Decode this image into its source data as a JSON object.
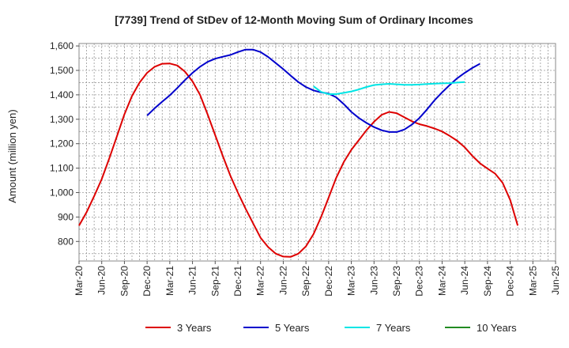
{
  "chart_data": {
    "type": "line",
    "title": "[7739]  Trend of StDev of 12-Month Moving Sum of Ordinary Incomes",
    "ylabel": "Amount (million yen)",
    "xlabel": "",
    "ylim": [
      720,
      1610
    ],
    "yticks": [
      800,
      900,
      1000,
      1100,
      1200,
      1300,
      1400,
      1500,
      1600
    ],
    "ytick_labels": [
      "800",
      "900",
      "1,000",
      "1,100",
      "1,200",
      "1,300",
      "1,400",
      "1,500",
      "1,600"
    ],
    "x_start": "2020-03",
    "x_end": "2025-06",
    "xticks": [
      "2020-03",
      "2020-06",
      "2020-09",
      "2020-12",
      "2021-03",
      "2021-06",
      "2021-09",
      "2021-12",
      "2022-03",
      "2022-06",
      "2022-09",
      "2022-12",
      "2023-03",
      "2023-06",
      "2023-09",
      "2023-12",
      "2024-03",
      "2024-06",
      "2024-09",
      "2024-12",
      "2025-03",
      "2025-06"
    ],
    "xtick_labels": [
      "Mar-20",
      "Jun-20",
      "Sep-20",
      "Dec-20",
      "Mar-21",
      "Jun-21",
      "Sep-21",
      "Dec-21",
      "Mar-22",
      "Jun-22",
      "Sep-22",
      "Dec-22",
      "Mar-23",
      "Jun-23",
      "Sep-23",
      "Dec-23",
      "Mar-24",
      "Jun-24",
      "Sep-24",
      "Dec-24",
      "Mar-25",
      "Jun-25"
    ],
    "grid": true,
    "legend_position": "bottom",
    "series": [
      {
        "name": "3 Years",
        "color": "#dd0000",
        "points": [
          [
            "2020-03",
            865
          ],
          [
            "2020-04",
            920
          ],
          [
            "2020-05",
            985
          ],
          [
            "2020-06",
            1055
          ],
          [
            "2020-07",
            1140
          ],
          [
            "2020-08",
            1230
          ],
          [
            "2020-09",
            1320
          ],
          [
            "2020-10",
            1395
          ],
          [
            "2020-11",
            1450
          ],
          [
            "2020-12",
            1490
          ],
          [
            "2021-01",
            1515
          ],
          [
            "2021-02",
            1527
          ],
          [
            "2021-03",
            1528
          ],
          [
            "2021-04",
            1520
          ],
          [
            "2021-05",
            1495
          ],
          [
            "2021-06",
            1455
          ],
          [
            "2021-07",
            1400
          ],
          [
            "2021-08",
            1320
          ],
          [
            "2021-09",
            1235
          ],
          [
            "2021-10",
            1150
          ],
          [
            "2021-11",
            1070
          ],
          [
            "2021-12",
            1000
          ],
          [
            "2022-01",
            935
          ],
          [
            "2022-02",
            875
          ],
          [
            "2022-03",
            815
          ],
          [
            "2022-04",
            777
          ],
          [
            "2022-05",
            750
          ],
          [
            "2022-06",
            738
          ],
          [
            "2022-07",
            737
          ],
          [
            "2022-08",
            750
          ],
          [
            "2022-09",
            780
          ],
          [
            "2022-10",
            830
          ],
          [
            "2022-11",
            900
          ],
          [
            "2022-12",
            980
          ],
          [
            "2023-01",
            1060
          ],
          [
            "2023-02",
            1125
          ],
          [
            "2023-03",
            1175
          ],
          [
            "2023-04",
            1215
          ],
          [
            "2023-05",
            1255
          ],
          [
            "2023-06",
            1290
          ],
          [
            "2023-07",
            1318
          ],
          [
            "2023-08",
            1330
          ],
          [
            "2023-09",
            1325
          ],
          [
            "2023-10",
            1308
          ],
          [
            "2023-11",
            1292
          ],
          [
            "2023-12",
            1280
          ],
          [
            "2024-01",
            1272
          ],
          [
            "2024-02",
            1262
          ],
          [
            "2024-03",
            1250
          ],
          [
            "2024-04",
            1232
          ],
          [
            "2024-05",
            1212
          ],
          [
            "2024-06",
            1185
          ],
          [
            "2024-07",
            1150
          ],
          [
            "2024-08",
            1120
          ],
          [
            "2024-09",
            1098
          ],
          [
            "2024-10",
            1078
          ],
          [
            "2024-11",
            1040
          ],
          [
            "2024-12",
            970
          ],
          [
            "2025-01",
            865
          ]
        ]
      },
      {
        "name": "5 Years",
        "color": "#0000cc",
        "points": [
          [
            "2020-12",
            1315
          ],
          [
            "2021-01",
            1345
          ],
          [
            "2021-02",
            1372
          ],
          [
            "2021-03",
            1398
          ],
          [
            "2021-04",
            1428
          ],
          [
            "2021-05",
            1460
          ],
          [
            "2021-06",
            1490
          ],
          [
            "2021-07",
            1515
          ],
          [
            "2021-08",
            1535
          ],
          [
            "2021-09",
            1548
          ],
          [
            "2021-10",
            1556
          ],
          [
            "2021-11",
            1563
          ],
          [
            "2021-12",
            1575
          ],
          [
            "2022-01",
            1585
          ],
          [
            "2022-02",
            1585
          ],
          [
            "2022-03",
            1575
          ],
          [
            "2022-04",
            1555
          ],
          [
            "2022-05",
            1530
          ],
          [
            "2022-06",
            1505
          ],
          [
            "2022-07",
            1478
          ],
          [
            "2022-08",
            1452
          ],
          [
            "2022-09",
            1432
          ],
          [
            "2022-10",
            1418
          ],
          [
            "2022-11",
            1410
          ],
          [
            "2022-12",
            1405
          ],
          [
            "2023-01",
            1390
          ],
          [
            "2023-02",
            1362
          ],
          [
            "2023-03",
            1330
          ],
          [
            "2023-04",
            1305
          ],
          [
            "2023-05",
            1285
          ],
          [
            "2023-06",
            1268
          ],
          [
            "2023-07",
            1255
          ],
          [
            "2023-08",
            1248
          ],
          [
            "2023-09",
            1248
          ],
          [
            "2023-10",
            1258
          ],
          [
            "2023-11",
            1278
          ],
          [
            "2023-12",
            1305
          ],
          [
            "2024-01",
            1340
          ],
          [
            "2024-02",
            1378
          ],
          [
            "2024-03",
            1410
          ],
          [
            "2024-04",
            1440
          ],
          [
            "2024-05",
            1468
          ],
          [
            "2024-06",
            1490
          ],
          [
            "2024-07",
            1510
          ],
          [
            "2024-08",
            1527
          ]
        ]
      },
      {
        "name": "7 Years",
        "color": "#00e5e5",
        "points": [
          [
            "2022-10",
            1435
          ],
          [
            "2022-11",
            1412
          ],
          [
            "2022-12",
            1403
          ],
          [
            "2023-01",
            1403
          ],
          [
            "2023-02",
            1408
          ],
          [
            "2023-03",
            1414
          ],
          [
            "2023-04",
            1422
          ],
          [
            "2023-05",
            1432
          ],
          [
            "2023-06",
            1440
          ],
          [
            "2023-07",
            1443
          ],
          [
            "2023-08",
            1445
          ],
          [
            "2023-09",
            1443
          ],
          [
            "2023-10",
            1441
          ],
          [
            "2023-11",
            1441
          ],
          [
            "2023-12",
            1442
          ],
          [
            "2024-01",
            1444
          ],
          [
            "2024-02",
            1446
          ],
          [
            "2024-03",
            1447
          ],
          [
            "2024-04",
            1448
          ],
          [
            "2024-05",
            1450
          ],
          [
            "2024-06",
            1452
          ]
        ]
      },
      {
        "name": "10 Years",
        "color": "#228b22",
        "points": []
      }
    ]
  }
}
